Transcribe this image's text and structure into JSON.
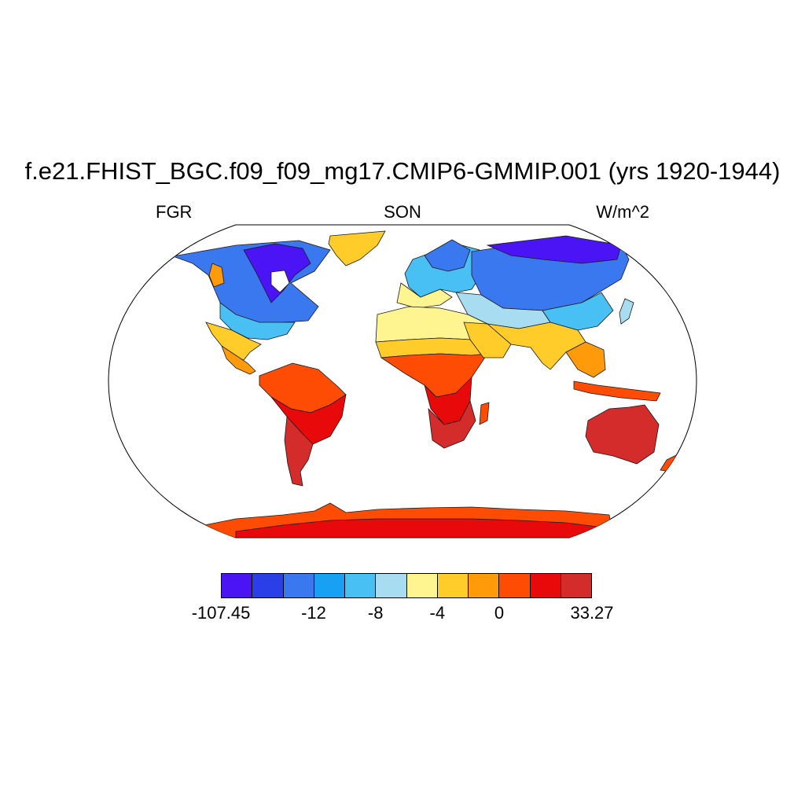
{
  "title": "f.e21.FHIST_BGC.f09_f09_mg17.CMIP6-GMMIP.001 (yrs 1920-1944)",
  "left_label": "FGR",
  "center_label": "SON",
  "right_label": "W/m^2",
  "colorbar": {
    "colors": [
      "#4a14f5",
      "#2b3fe8",
      "#3a78f0",
      "#18a0f5",
      "#48c0f4",
      "#a8dcf0",
      "#fff590",
      "#ffcc2a",
      "#ff9a0a",
      "#ff4c05",
      "#e80a0a",
      "#d42b2b"
    ],
    "labels": [
      "-107.45",
      "-12",
      "-8",
      "-4",
      "0",
      "33.27"
    ],
    "label_bins": [
      0,
      3,
      5,
      7,
      9,
      12
    ]
  },
  "projection": "robinson"
}
